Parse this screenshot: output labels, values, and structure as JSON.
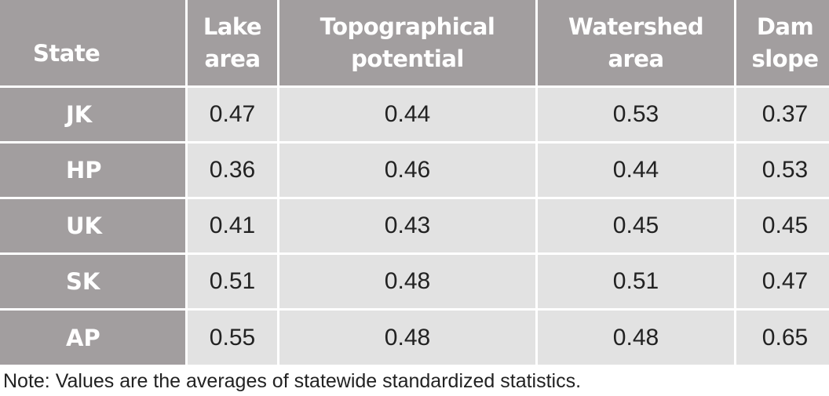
{
  "chart_data": {
    "type": "table",
    "columns": [
      "State",
      "Lake\narea",
      "Topographical\npotential",
      "Watershed\narea",
      "Dam\nslope"
    ],
    "header_lines": [
      [
        "State"
      ],
      [
        "Lake",
        "area"
      ],
      [
        "Topographical",
        "potential"
      ],
      [
        "Watershed",
        "area"
      ],
      [
        "Dam",
        "slope"
      ]
    ],
    "rows": [
      {
        "state": "JK",
        "values": [
          "0.47",
          "0.44",
          "0.53",
          "0.37"
        ]
      },
      {
        "state": "HP",
        "values": [
          "0.36",
          "0.46",
          "0.44",
          "0.53"
        ]
      },
      {
        "state": "UK",
        "values": [
          "0.41",
          "0.43",
          "0.45",
          "0.45"
        ]
      },
      {
        "state": "SK",
        "values": [
          "0.51",
          "0.48",
          "0.51",
          "0.47"
        ]
      },
      {
        "state": "AP",
        "values": [
          "0.55",
          "0.48",
          "0.48",
          "0.65"
        ]
      }
    ],
    "note": "Note: Values are the averages of statewide standardized statistics."
  },
  "colors": {
    "header_bg": "#a29e9f",
    "cell_bg": "#e2e2e2",
    "header_text": "#ffffff",
    "cell_text": "#222222"
  }
}
